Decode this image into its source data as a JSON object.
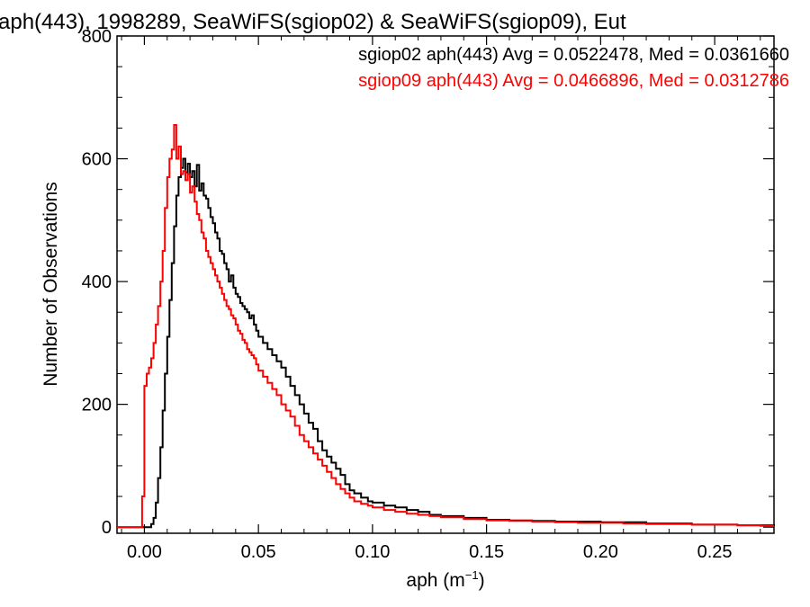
{
  "chart_data": {
    "type": "line",
    "title": "aph(443), 1998289, SeaWiFS(sgiop02) & SeaWiFS(sgiop09), Eut",
    "xlabel": "aph (m",
    "xlabel_sup": "−1",
    "xlabel_close": ")",
    "ylabel": "Number of Observations",
    "xlim": [
      -0.012,
      0.276
    ],
    "ylim": [
      -10,
      800
    ],
    "x_ticks": [
      0.0,
      0.05,
      0.1,
      0.15,
      0.2,
      0.25
    ],
    "x_tick_labels": [
      "0.00",
      "0.05",
      "0.10",
      "0.15",
      "0.20",
      "0.25"
    ],
    "y_ticks": [
      0,
      200,
      400,
      600,
      800
    ],
    "y_tick_labels": [
      "0",
      "200",
      "400",
      "600",
      "800"
    ],
    "legend_position": "top-right",
    "series": [
      {
        "name": "sgiop02 aph(443) Avg = 0.0522478, Med = 0.0361660",
        "color": "#000000",
        "points": [
          [
            -0.012,
            0
          ],
          [
            0.0,
            0
          ],
          [
            0.002,
            0
          ],
          [
            0.003,
            5
          ],
          [
            0.004,
            15
          ],
          [
            0.005,
            40
          ],
          [
            0.006,
            80
          ],
          [
            0.007,
            130
          ],
          [
            0.008,
            190
          ],
          [
            0.009,
            250
          ],
          [
            0.01,
            310
          ],
          [
            0.011,
            370
          ],
          [
            0.012,
            430
          ],
          [
            0.013,
            490
          ],
          [
            0.014,
            540
          ],
          [
            0.015,
            570
          ],
          [
            0.016,
            585
          ],
          [
            0.017,
            600
          ],
          [
            0.018,
            578
          ],
          [
            0.019,
            592
          ],
          [
            0.02,
            570
          ],
          [
            0.021,
            580
          ],
          [
            0.022,
            555
          ],
          [
            0.023,
            590
          ],
          [
            0.024,
            548
          ],
          [
            0.025,
            560
          ],
          [
            0.026,
            540
          ],
          [
            0.027,
            535
          ],
          [
            0.028,
            520
          ],
          [
            0.029,
            505
          ],
          [
            0.03,
            495
          ],
          [
            0.031,
            480
          ],
          [
            0.032,
            470
          ],
          [
            0.033,
            450
          ],
          [
            0.034,
            445
          ],
          [
            0.035,
            430
          ],
          [
            0.036,
            420
          ],
          [
            0.037,
            400
          ],
          [
            0.038,
            410
          ],
          [
            0.039,
            390
          ],
          [
            0.04,
            380
          ],
          [
            0.041,
            375
          ],
          [
            0.042,
            365
          ],
          [
            0.043,
            360
          ],
          [
            0.044,
            355
          ],
          [
            0.045,
            350
          ],
          [
            0.046,
            340
          ],
          [
            0.047,
            345
          ],
          [
            0.048,
            330
          ],
          [
            0.049,
            320
          ],
          [
            0.05,
            310
          ],
          [
            0.052,
            300
          ],
          [
            0.054,
            290
          ],
          [
            0.056,
            280
          ],
          [
            0.058,
            270
          ],
          [
            0.06,
            260
          ],
          [
            0.062,
            245
          ],
          [
            0.064,
            230
          ],
          [
            0.066,
            215
          ],
          [
            0.068,
            200
          ],
          [
            0.07,
            185
          ],
          [
            0.072,
            170
          ],
          [
            0.074,
            160
          ],
          [
            0.076,
            140
          ],
          [
            0.078,
            125
          ],
          [
            0.08,
            115
          ],
          [
            0.082,
            105
          ],
          [
            0.084,
            95
          ],
          [
            0.086,
            85
          ],
          [
            0.088,
            70
          ],
          [
            0.09,
            60
          ],
          [
            0.092,
            55
          ],
          [
            0.095,
            48
          ],
          [
            0.098,
            42
          ],
          [
            0.1,
            40
          ],
          [
            0.105,
            35
          ],
          [
            0.11,
            32
          ],
          [
            0.115,
            28
          ],
          [
            0.12,
            25
          ],
          [
            0.125,
            20
          ],
          [
            0.13,
            18
          ],
          [
            0.14,
            15
          ],
          [
            0.15,
            12
          ],
          [
            0.16,
            11
          ],
          [
            0.17,
            10
          ],
          [
            0.18,
            9
          ],
          [
            0.19,
            9
          ],
          [
            0.2,
            8
          ],
          [
            0.21,
            8
          ],
          [
            0.22,
            6
          ],
          [
            0.23,
            6
          ],
          [
            0.24,
            4
          ],
          [
            0.25,
            4
          ],
          [
            0.26,
            3
          ],
          [
            0.27,
            3
          ],
          [
            0.276,
            2
          ]
        ]
      },
      {
        "name": "sgiop09 aph(443) Avg = 0.0466896, Med = 0.0312786",
        "color": "#ff0000",
        "points": [
          [
            -0.012,
            0
          ],
          [
            -0.002,
            0
          ],
          [
            -0.001,
            50
          ],
          [
            0.0,
            230
          ],
          [
            0.001,
            250
          ],
          [
            0.002,
            260
          ],
          [
            0.003,
            275
          ],
          [
            0.004,
            300
          ],
          [
            0.005,
            330
          ],
          [
            0.006,
            360
          ],
          [
            0.007,
            400
          ],
          [
            0.008,
            450
          ],
          [
            0.009,
            520
          ],
          [
            0.01,
            570
          ],
          [
            0.011,
            600
          ],
          [
            0.012,
            615
          ],
          [
            0.013,
            655
          ],
          [
            0.014,
            600
          ],
          [
            0.015,
            620
          ],
          [
            0.016,
            575
          ],
          [
            0.017,
            580
          ],
          [
            0.018,
            565
          ],
          [
            0.019,
            575
          ],
          [
            0.02,
            545
          ],
          [
            0.021,
            555
          ],
          [
            0.022,
            530
          ],
          [
            0.023,
            510
          ],
          [
            0.024,
            500
          ],
          [
            0.025,
            480
          ],
          [
            0.026,
            470
          ],
          [
            0.027,
            450
          ],
          [
            0.028,
            440
          ],
          [
            0.029,
            430
          ],
          [
            0.03,
            420
          ],
          [
            0.031,
            410
          ],
          [
            0.032,
            400
          ],
          [
            0.033,
            390
          ],
          [
            0.034,
            380
          ],
          [
            0.035,
            370
          ],
          [
            0.036,
            360
          ],
          [
            0.037,
            355
          ],
          [
            0.038,
            345
          ],
          [
            0.039,
            340
          ],
          [
            0.04,
            330
          ],
          [
            0.041,
            320
          ],
          [
            0.042,
            315
          ],
          [
            0.043,
            305
          ],
          [
            0.044,
            300
          ],
          [
            0.045,
            290
          ],
          [
            0.046,
            285
          ],
          [
            0.047,
            280
          ],
          [
            0.048,
            275
          ],
          [
            0.049,
            265
          ],
          [
            0.05,
            255
          ],
          [
            0.052,
            245
          ],
          [
            0.054,
            235
          ],
          [
            0.056,
            225
          ],
          [
            0.058,
            215
          ],
          [
            0.06,
            200
          ],
          [
            0.062,
            190
          ],
          [
            0.064,
            180
          ],
          [
            0.066,
            165
          ],
          [
            0.068,
            150
          ],
          [
            0.07,
            140
          ],
          [
            0.072,
            130
          ],
          [
            0.074,
            120
          ],
          [
            0.076,
            110
          ],
          [
            0.078,
            100
          ],
          [
            0.08,
            90
          ],
          [
            0.082,
            80
          ],
          [
            0.084,
            70
          ],
          [
            0.086,
            62
          ],
          [
            0.088,
            55
          ],
          [
            0.09,
            48
          ],
          [
            0.092,
            42
          ],
          [
            0.095,
            38
          ],
          [
            0.098,
            35
          ],
          [
            0.1,
            32
          ],
          [
            0.105,
            28
          ],
          [
            0.11,
            25
          ],
          [
            0.115,
            22
          ],
          [
            0.12,
            20
          ],
          [
            0.125,
            18
          ],
          [
            0.13,
            16
          ],
          [
            0.14,
            13
          ],
          [
            0.15,
            11
          ],
          [
            0.16,
            10
          ],
          [
            0.17,
            9
          ],
          [
            0.18,
            8
          ],
          [
            0.19,
            7
          ],
          [
            0.2,
            7
          ],
          [
            0.21,
            6
          ],
          [
            0.22,
            5
          ],
          [
            0.23,
            5
          ],
          [
            0.24,
            4
          ],
          [
            0.25,
            4
          ],
          [
            0.26,
            3
          ],
          [
            0.27,
            2
          ],
          [
            0.276,
            2
          ]
        ]
      }
    ]
  }
}
